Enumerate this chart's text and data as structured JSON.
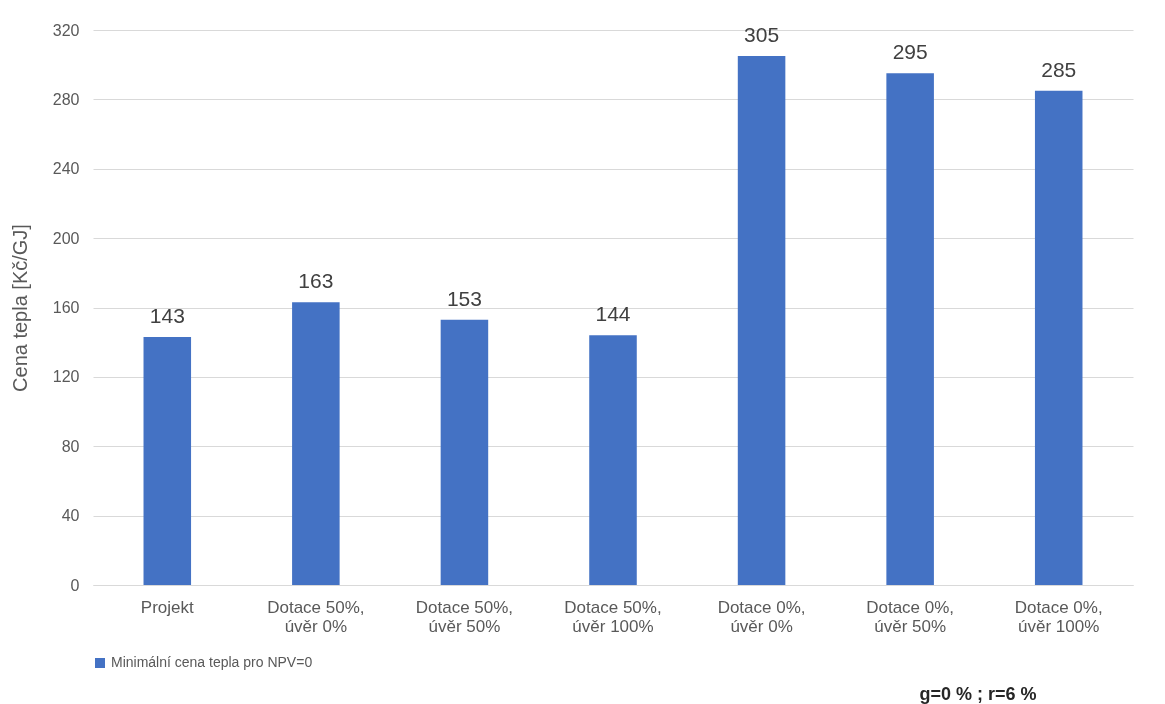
{
  "chart_data": {
    "type": "bar",
    "ylabel": "Cena tepla [Kč/GJ]",
    "categories": [
      "Projekt",
      "Dotace 50%,\núvěr 0%",
      "Dotace 50%,\núvěr 50%",
      "Dotace 50%,\núvěr 100%",
      "Dotace 0%,\núvěr 0%",
      "Dotace 0%,\núvěr 50%",
      "Dotace 0%,\núvěr 100%"
    ],
    "series": [
      {
        "name": "Minimální cena tepla pro NPV=0",
        "color": "#4472c4",
        "values": [
          143,
          163,
          153,
          144,
          305,
          295,
          285
        ]
      }
    ],
    "ylim": [
      0,
      320
    ],
    "yticks": [
      0,
      40,
      80,
      120,
      160,
      200,
      240,
      280,
      320
    ],
    "grid": "y",
    "data_labels": true,
    "legend": "bottom",
    "annotations": [
      "g=0 % ; r=6 %"
    ]
  }
}
